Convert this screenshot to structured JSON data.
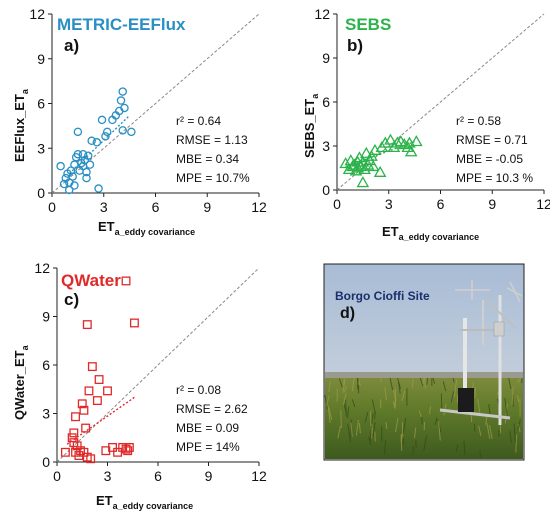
{
  "chart_data": [
    {
      "id": "a",
      "type": "scatter",
      "title": "METRIC-EEFlux",
      "panel_letter": "a)",
      "ylabel_main": "EEFlux_ET",
      "ylabel_sub": "a",
      "xlabel_main": "ET",
      "xlabel_sub": "a_eddy covariance",
      "xlim": [
        0,
        12
      ],
      "ylim": [
        0,
        12
      ],
      "xticks": [
        "0",
        "3",
        "6",
        "9",
        "12"
      ],
      "yticks": [
        "0",
        "3",
        "6",
        "9",
        "12"
      ],
      "color": "#2a8fc4",
      "marker": "circle",
      "stats": [
        "r² = 0.64",
        "RMSE = 1.13",
        "MBE = 0.34",
        "MPE = 10.7%"
      ],
      "fit": {
        "x": [
          1.0,
          4.5
        ],
        "y": [
          1.3,
          5.2
        ]
      },
      "points": [
        [
          0.5,
          1.8
        ],
        [
          0.7,
          0.6
        ],
        [
          0.8,
          1.0
        ],
        [
          0.9,
          1.3
        ],
        [
          1.0,
          0.7
        ],
        [
          1.1,
          1.5
        ],
        [
          1.0,
          0.2
        ],
        [
          1.2,
          1.1
        ],
        [
          1.3,
          1.9
        ],
        [
          1.3,
          0.5
        ],
        [
          1.4,
          2.4
        ],
        [
          1.5,
          2.6
        ],
        [
          1.5,
          4.1
        ],
        [
          1.6,
          1.5
        ],
        [
          1.7,
          2.0
        ],
        [
          1.8,
          1.8
        ],
        [
          1.9,
          2.2
        ],
        [
          1.8,
          2.6
        ],
        [
          2.0,
          1.0
        ],
        [
          2.1,
          2.5
        ],
        [
          2.2,
          1.9
        ],
        [
          2.0,
          1.4
        ],
        [
          2.3,
          3.5
        ],
        [
          2.6,
          3.4
        ],
        [
          2.7,
          0.3
        ],
        [
          2.9,
          4.9
        ],
        [
          3.1,
          3.8
        ],
        [
          3.2,
          4.1
        ],
        [
          3.5,
          4.9
        ],
        [
          3.7,
          5.2
        ],
        [
          3.9,
          5.5
        ],
        [
          4.0,
          6.2
        ],
        [
          4.1,
          6.8
        ],
        [
          4.2,
          5.7
        ],
        [
          4.1,
          4.2
        ],
        [
          4.6,
          4.1
        ]
      ]
    },
    {
      "id": "b",
      "type": "scatter",
      "title": "SEBS",
      "panel_letter": "b)",
      "ylabel_main": "SEBS_ET",
      "ylabel_sub": "a",
      "xlabel_main": "ET",
      "xlabel_sub": "a_eddy covariance",
      "xlim": [
        0,
        12
      ],
      "ylim": [
        0,
        12
      ],
      "xticks": [
        "0",
        "3",
        "6",
        "9",
        "12"
      ],
      "yticks": [
        "0",
        "3",
        "6",
        "9",
        "12"
      ],
      "color": "#2bb34a",
      "marker": "triangle",
      "stats": [
        "r² = 0.58",
        "RMSE = 0.71",
        "MBE = -0.05",
        "MPE = 10.3 %"
      ],
      "fit": {
        "x": [
          0.5,
          4.5
        ],
        "y": [
          1.6,
          3.3
        ]
      },
      "points": [
        [
          0.5,
          1.8
        ],
        [
          0.7,
          1.4
        ],
        [
          0.8,
          2.0
        ],
        [
          0.9,
          1.6
        ],
        [
          1.0,
          1.7
        ],
        [
          1.1,
          1.3
        ],
        [
          1.2,
          1.9
        ],
        [
          1.2,
          1.5
        ],
        [
          1.3,
          2.2
        ],
        [
          1.4,
          1.6
        ],
        [
          1.5,
          1.9
        ],
        [
          1.5,
          0.5
        ],
        [
          1.6,
          1.4
        ],
        [
          1.7,
          2.5
        ],
        [
          1.8,
          1.7
        ],
        [
          1.9,
          2.0
        ],
        [
          2.0,
          2.3
        ],
        [
          2.1,
          1.6
        ],
        [
          2.2,
          2.7
        ],
        [
          2.5,
          1.2
        ],
        [
          2.6,
          2.9
        ],
        [
          2.8,
          3.2
        ],
        [
          3.1,
          3.4
        ],
        [
          3.3,
          2.9
        ],
        [
          3.5,
          3.2
        ],
        [
          3.7,
          3.3
        ],
        [
          3.9,
          3.1
        ],
        [
          4.1,
          2.9
        ],
        [
          4.2,
          3.2
        ],
        [
          4.3,
          2.6
        ],
        [
          4.6,
          3.3
        ]
      ]
    },
    {
      "id": "c",
      "type": "scatter",
      "title": "QWater",
      "panel_letter": "c)",
      "ylabel_main": "QWater_ET",
      "ylabel_sub": "a",
      "xlabel_main": "ET",
      "xlabel_sub": "a_eddy covariance",
      "xlim": [
        0,
        12
      ],
      "ylim": [
        0,
        12
      ],
      "xticks": [
        "0",
        "3",
        "6",
        "9",
        "12"
      ],
      "yticks": [
        "0",
        "3",
        "6",
        "9",
        "12"
      ],
      "color": "#e02a2a",
      "marker": "square",
      "stats": [
        "r² = 0.08",
        "RMSE = 2.62",
        "MBE = 0.09",
        "MPE =  14%"
      ],
      "fit": {
        "x": [
          0.6,
          4.6
        ],
        "y": [
          1.1,
          4.0
        ]
      },
      "points": [
        [
          4.1,
          11.2
        ],
        [
          4.6,
          8.6
        ],
        [
          1.8,
          8.5
        ],
        [
          2.1,
          5.9
        ],
        [
          2.5,
          5.1
        ],
        [
          2.4,
          3.8
        ],
        [
          3.0,
          4.4
        ],
        [
          1.9,
          4.4
        ],
        [
          1.5,
          3.6
        ],
        [
          1.6,
          3.2
        ],
        [
          1.1,
          2.8
        ],
        [
          1.0,
          1.8
        ],
        [
          0.9,
          1.5
        ],
        [
          1.0,
          1.2
        ],
        [
          1.2,
          1.0
        ],
        [
          1.1,
          0.6
        ],
        [
          1.3,
          0.4
        ],
        [
          1.4,
          0.7
        ],
        [
          1.6,
          0.6
        ],
        [
          1.8,
          0.3
        ],
        [
          2.0,
          0.2
        ],
        [
          1.7,
          2.1
        ],
        [
          2.9,
          0.7
        ],
        [
          3.3,
          0.9
        ],
        [
          3.6,
          0.6
        ],
        [
          3.9,
          0.9
        ],
        [
          4.1,
          0.8
        ],
        [
          4.3,
          0.9
        ],
        [
          4.2,
          0.7
        ],
        [
          0.5,
          0.6
        ]
      ]
    }
  ],
  "photo": {
    "title": "Borgo Cioffi Site",
    "letter": "d)",
    "colors": {
      "sky": "#b9c9dd",
      "horizon": "#d8d6cf",
      "field": "#4f6a28",
      "field_light": "#8a8d3b"
    }
  }
}
